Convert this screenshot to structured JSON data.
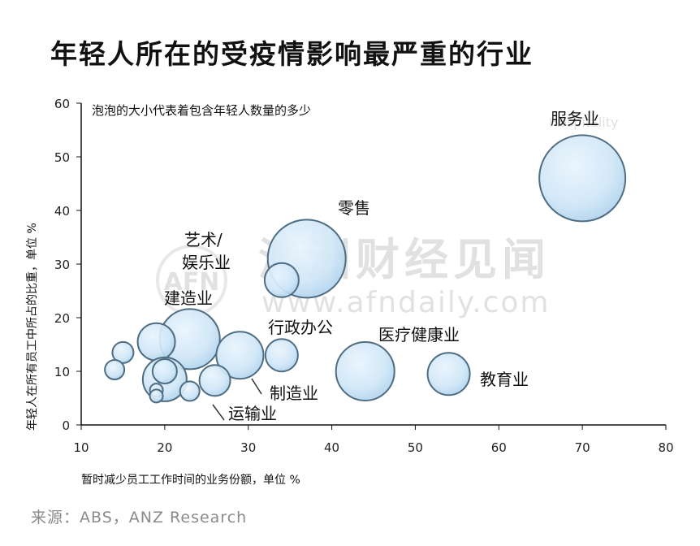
{
  "title": "年轻人所在的受疫情影响最严重的行业",
  "source": "来源：ABS，ANZ Research",
  "watermark": {
    "cn": "澳洲财经见闻",
    "url": "www.afndaily.com",
    "logo": "AFN"
  },
  "chart_data": {
    "type": "scatter",
    "title": "年轻人所在的受疫情影响最严重的行业",
    "subtitle": "泡泡的大小代表着包含年轻人数量的多少",
    "xlabel": "暂时减少员工工作时间的业务份额，单位 %",
    "ylabel": "年轻人在所有员工中所占的比重，单位 %",
    "xlim": [
      10,
      80
    ],
    "ylim": [
      0,
      60
    ],
    "x_ticks": [
      "10",
      "20",
      "30",
      "40",
      "50",
      "60",
      "70",
      "80"
    ],
    "y_ticks": [
      "0",
      "10",
      "20",
      "30",
      "40",
      "50",
      "60"
    ],
    "grid": false,
    "points": [
      {
        "x": 70,
        "y": 46,
        "r": 53,
        "label": "服务业"
      },
      {
        "x": 37,
        "y": 31,
        "r": 48,
        "label": "零售"
      },
      {
        "x": 34,
        "y": 27,
        "r": 21,
        "label": ""
      },
      {
        "x": 23,
        "y": 16,
        "r": 37,
        "label": "建造业"
      },
      {
        "x": 44,
        "y": 10,
        "r": 36,
        "label": "医疗健康业"
      },
      {
        "x": 54,
        "y": 9.5,
        "r": 26,
        "label": "教育业"
      },
      {
        "x": 29,
        "y": 13,
        "r": 29,
        "label": "制造业"
      },
      {
        "x": 34,
        "y": 13,
        "r": 20,
        "label": "行政办公"
      },
      {
        "x": 19,
        "y": 15.5,
        "r": 23,
        "label": ""
      },
      {
        "x": 20,
        "y": 8.5,
        "r": 27,
        "label": ""
      },
      {
        "x": 20,
        "y": 10,
        "r": 15,
        "label": ""
      },
      {
        "x": 15,
        "y": 13.5,
        "r": 13,
        "label": ""
      },
      {
        "x": 14,
        "y": 10.3,
        "r": 12,
        "label": ""
      },
      {
        "x": 26,
        "y": 8.3,
        "r": 19,
        "label": "运输业"
      },
      {
        "x": 23,
        "y": 6.3,
        "r": 12,
        "label": ""
      },
      {
        "x": 19,
        "y": 6.5,
        "r": 8,
        "label": ""
      },
      {
        "x": 19,
        "y": 5.4,
        "r": 8,
        "label": ""
      }
    ],
    "annotations": [
      "服务业",
      "零售",
      "艺术/",
      "娱乐业",
      "建造业",
      "行政办公",
      "医疗健康业",
      "教育业",
      "制造业",
      "运输业"
    ],
    "ghost_label": "Hospitality"
  }
}
